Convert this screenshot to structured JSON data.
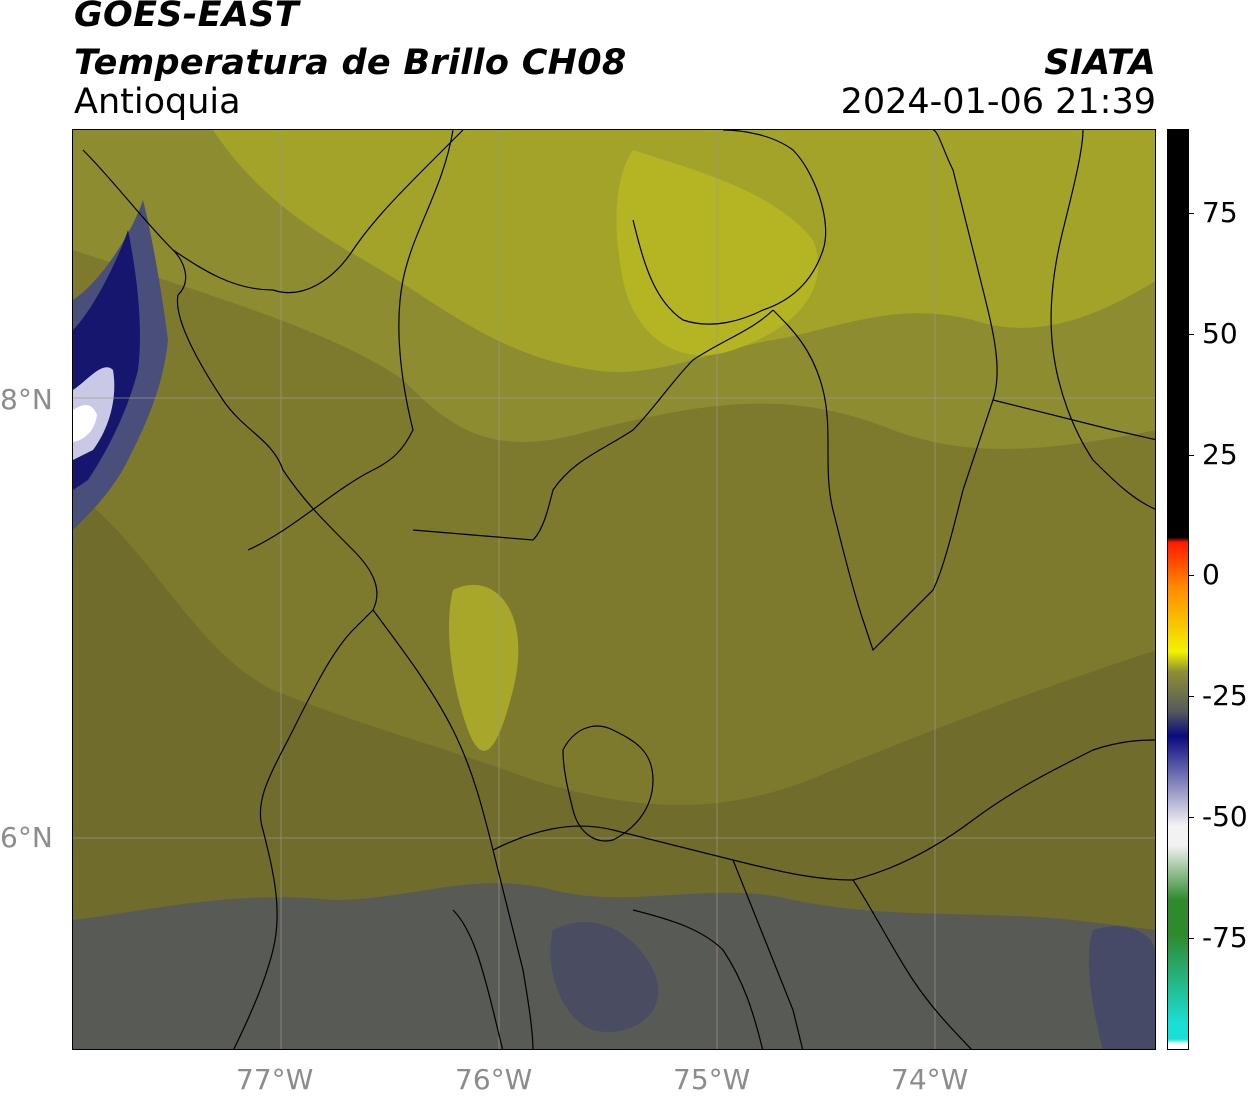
{
  "header": {
    "satellite": "GOES-EAST",
    "product": "Temperatura de Brillo CH08",
    "region": "Antioquia",
    "brand": "SIATA",
    "timestamp": "2024-01-06 21:39"
  },
  "map": {
    "lon_ticks": [
      "77°W",
      "76°W",
      "75°W",
      "74°W"
    ],
    "lat_ticks": [
      "8°N",
      "6°N"
    ]
  },
  "colorbar": {
    "ticks": [
      "75",
      "50",
      "25",
      "0",
      "-25",
      "-50",
      "-75"
    ],
    "range": [
      -93,
      92
    ],
    "colors": {
      "cyan": "#19e0d6",
      "green": "#2f8a2e",
      "white": "#f2f2f2",
      "navy": "#0a0a80",
      "gray": "#555a5c",
      "olive": "#8f8f32",
      "yellow": "#f2f200",
      "orange": "#ff8a00",
      "red": "#ff1a00",
      "black": "#000000"
    }
  }
}
